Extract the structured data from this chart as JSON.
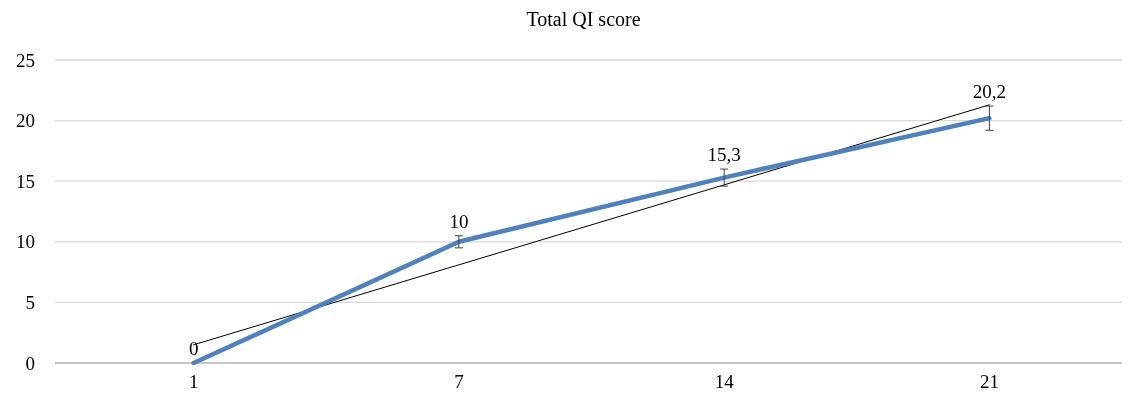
{
  "chart_data": {
    "type": "line",
    "title": "Total QI score",
    "categories": [
      "1",
      "7",
      "14",
      "21"
    ],
    "series": [
      {
        "color": "#4f81bd",
        "values": [
          0,
          10,
          15.3,
          20.2
        ],
        "value_labels": [
          "0",
          "10",
          "15,3",
          "20,2"
        ],
        "errors": [
          null,
          0.5,
          0.7,
          1
        ]
      },
      {
        "type": "line",
        "color": "#000000",
        "values": [
          1.5,
          8.1,
          14.7,
          21.3
        ]
      }
    ],
    "ylim": [
      0,
      25
    ],
    "yticks": [
      0,
      5,
      10,
      15,
      20,
      25
    ],
    "grid": "y",
    "marker": "none",
    "line_style": "solid"
  }
}
